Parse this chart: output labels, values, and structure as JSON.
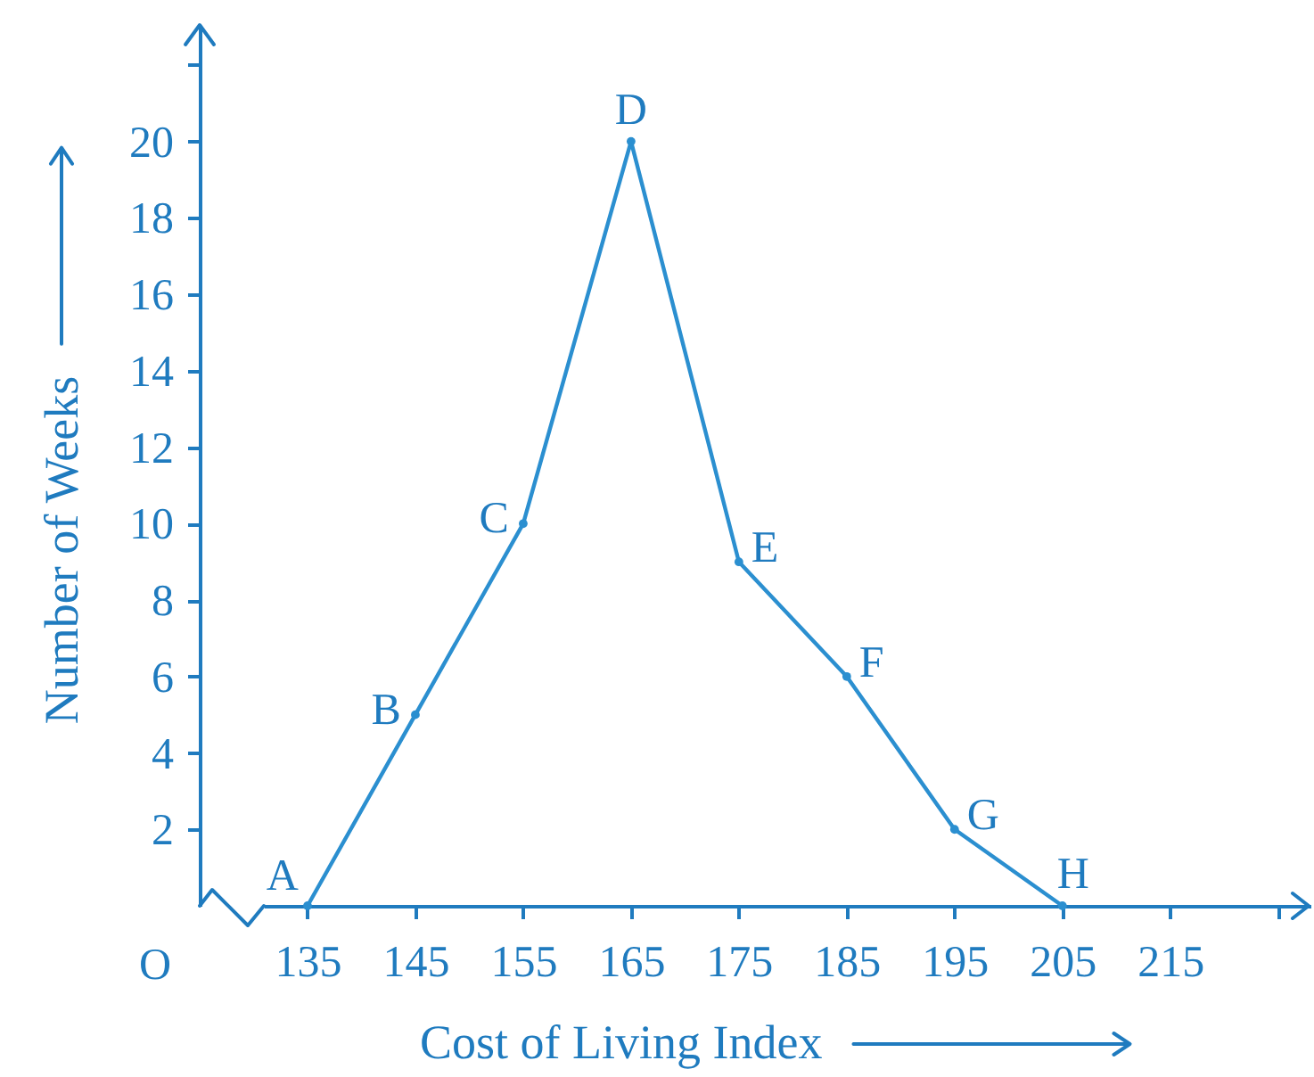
{
  "chart_data": {
    "type": "line",
    "xlabel": "Cost of Living Index",
    "ylabel": "Number of Weeks",
    "x": [
      135,
      145,
      155,
      165,
      175,
      185,
      195,
      205
    ],
    "series": [
      {
        "color": "#2b8fd0",
        "values": [
          0,
          5,
          10,
          20,
          9,
          6,
          2,
          0
        ]
      }
    ],
    "xlim": [
      125,
      228
    ],
    "xticks": [
      135,
      145,
      155,
      165,
      175,
      185,
      195,
      205,
      215,
      {
        "value": 225,
        "label": null
      }
    ],
    "ylim": [
      0,
      23
    ],
    "yticks": [
      2,
      4,
      6,
      8,
      10,
      12,
      14,
      16,
      18,
      20,
      {
        "value": 22,
        "label": null
      }
    ],
    "marker": "circle",
    "line_style": "solid",
    "annotations": [
      "O",
      {
        "text": "A",
        "x": 135,
        "y": 0
      },
      {
        "text": "B",
        "x": 145,
        "y": 5
      },
      {
        "text": "C",
        "x": 155,
        "y": 10
      },
      {
        "text": "D",
        "x": 165,
        "y": 20
      },
      {
        "text": "E",
        "x": 175,
        "y": 9
      },
      {
        "text": "F",
        "x": 185,
        "y": 6
      },
      {
        "text": "G",
        "x": 195,
        "y": 2
      },
      {
        "text": "H",
        "x": 205,
        "y": 0
      }
    ]
  }
}
